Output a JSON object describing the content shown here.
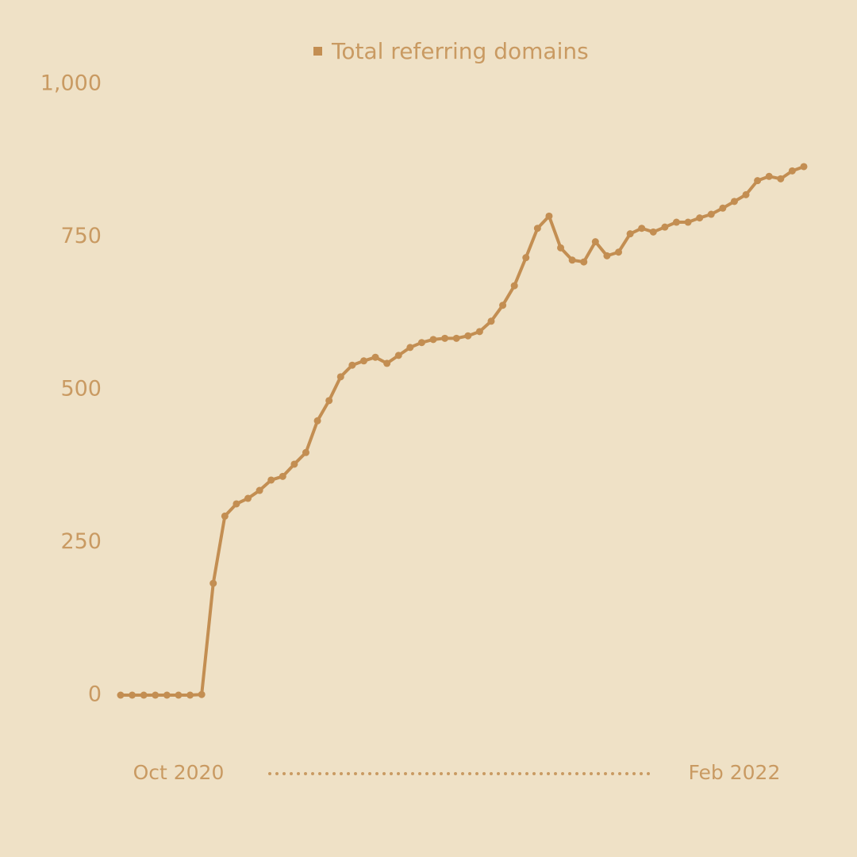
{
  "chart_data": {
    "type": "line",
    "categories": [
      null,
      null,
      null,
      null,
      null,
      "Oct 2020",
      null,
      null,
      null,
      null,
      null,
      null,
      null,
      null,
      null,
      null,
      null,
      null,
      null,
      null,
      null,
      null,
      null,
      null,
      null,
      null,
      null,
      null,
      null,
      null,
      null,
      null,
      null,
      null,
      null,
      null,
      null,
      null,
      null,
      null,
      null,
      null,
      null,
      null,
      null,
      null,
      null,
      null,
      null,
      null,
      null,
      null,
      null,
      "Feb 2022",
      null,
      null,
      null,
      null,
      null,
      null
    ],
    "series": [
      {
        "name": "Total referring domains",
        "color": "#c38e52",
        "values": [
          0,
          0,
          0,
          0,
          0,
          0,
          0,
          1,
          183,
          293,
          313,
          322,
          335,
          352,
          358,
          378,
          397,
          449,
          482,
          521,
          540,
          547,
          553,
          543,
          556,
          569,
          577,
          582,
          584,
          584,
          588,
          595,
          612,
          638,
          670,
          716,
          764,
          784,
          732,
          712,
          709,
          742,
          719,
          725,
          755,
          764,
          758,
          766,
          774,
          774,
          781,
          787,
          797,
          808,
          819,
          842,
          849,
          845,
          858,
          865
        ]
      }
    ],
    "ylim": [
      0,
      1000
    ],
    "yticks": [
      0,
      250,
      500,
      750,
      {
        "value": 1000,
        "label": "1,000"
      }
    ],
    "grid": false,
    "legend": "top"
  }
}
